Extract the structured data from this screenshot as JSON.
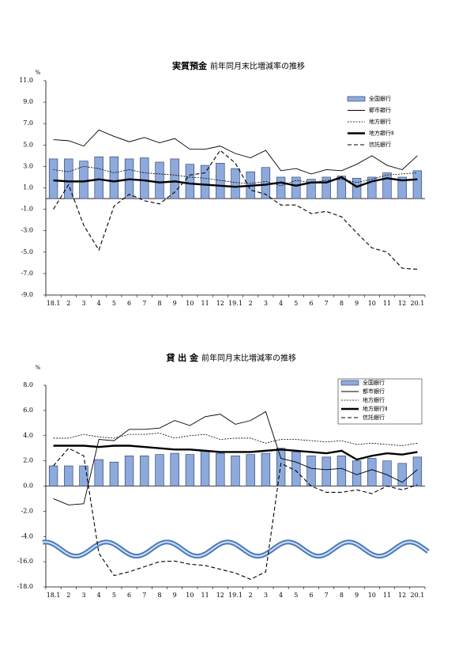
{
  "chart_data": [
    {
      "type": "bar-line",
      "title": "実質預金",
      "subtitle": "前年同月末比増減率の推移",
      "y_unit": "%",
      "categories": [
        "18.1",
        "2",
        "3",
        "4",
        "5",
        "6",
        "7",
        "8",
        "9",
        "10",
        "11",
        "12",
        "19.1",
        "2",
        "3",
        "4",
        "5",
        "6",
        "7",
        "8",
        "9",
        "10",
        "11",
        "12",
        "20.1"
      ],
      "ylim": [
        -9,
        11
      ],
      "yticks": [
        {
          "value": 11,
          "label": "11.0"
        },
        {
          "value": 9,
          "label": "9.0"
        },
        {
          "value": 7,
          "label": "7.0"
        },
        {
          "value": 5,
          "label": "5.0"
        },
        {
          "value": 3,
          "label": "3.0"
        },
        {
          "value": 1,
          "label": "1.0"
        },
        {
          "value": -1,
          "label": "-1.0"
        },
        {
          "value": -3,
          "label": "-3.0"
        },
        {
          "value": -5,
          "label": "-5.0"
        },
        {
          "value": -7,
          "label": "-7.0"
        },
        {
          "value": -9,
          "label": "-9.0"
        }
      ],
      "legend": "upper right",
      "legend_frame": false,
      "series": [
        {
          "name": "全国銀行",
          "kind": "bar",
          "color": "#8ea9db",
          "values": [
            3.7,
            3.7,
            3.5,
            3.9,
            3.9,
            3.7,
            3.8,
            3.4,
            3.7,
            3.2,
            3.1,
            3.3,
            2.8,
            2.5,
            2.9,
            2.0,
            2.0,
            1.8,
            2.0,
            2.1,
            1.9,
            2.0,
            2.4,
            2.0,
            2.6
          ]
        },
        {
          "name": "都市銀行",
          "kind": "line",
          "style": "solid",
          "color": "#000000",
          "values": [
            5.5,
            5.4,
            4.9,
            6.4,
            5.8,
            5.3,
            5.7,
            5.2,
            5.6,
            4.6,
            4.6,
            4.9,
            4.2,
            3.8,
            4.5,
            2.6,
            2.8,
            2.3,
            2.7,
            2.6,
            3.2,
            4.0,
            3.1,
            2.7,
            4.0
          ]
        },
        {
          "name": "地方銀行",
          "kind": "line",
          "style": "short-dash",
          "color": "#000000",
          "values": [
            2.7,
            2.5,
            3.0,
            2.8,
            2.4,
            2.7,
            2.4,
            2.3,
            2.2,
            2.0,
            1.9,
            1.7,
            1.5,
            1.4,
            1.6,
            1.2,
            1.7,
            1.5,
            1.7,
            1.8,
            1.5,
            1.8,
            2.2,
            2.3,
            2.4
          ]
        },
        {
          "name": "地方銀行Ⅱ",
          "kind": "line",
          "style": "thick",
          "color": "#000000",
          "values": [
            1.7,
            1.6,
            1.6,
            1.8,
            1.6,
            1.8,
            1.7,
            1.5,
            1.6,
            1.4,
            1.3,
            1.2,
            1.1,
            1.2,
            1.3,
            1.5,
            1.2,
            1.5,
            1.5,
            2.0,
            1.1,
            1.6,
            1.9,
            1.7,
            1.8
          ]
        },
        {
          "name": "信託銀行",
          "kind": "line",
          "style": "long-dash",
          "color": "#000000",
          "values": [
            -1.0,
            1.3,
            -2.5,
            -4.8,
            -0.7,
            0.4,
            -0.2,
            -0.5,
            0.6,
            2.2,
            2.4,
            4.5,
            3.3,
            0.8,
            0.4,
            -0.6,
            -0.6,
            -1.4,
            -1.2,
            -1.7,
            -3.2,
            -4.6,
            -5.0,
            -6.5,
            -6.6
          ]
        }
      ]
    },
    {
      "type": "bar-line",
      "title": "貸 出 金",
      "subtitle": "前年同月末比増減率の推移",
      "y_unit": "%",
      "categories": [
        "18.1",
        "2",
        "3",
        "4",
        "5",
        "6",
        "7",
        "8",
        "9",
        "10",
        "11",
        "12",
        "19.1",
        "2",
        "3",
        "4",
        "5",
        "6",
        "7",
        "8",
        "9",
        "10",
        "11",
        "12",
        "20.1"
      ],
      "ylim": [
        -18,
        8
      ],
      "ybreak": [
        -4,
        -16
      ],
      "yticks": [
        {
          "value": 8,
          "label": "8.0"
        },
        {
          "value": 6,
          "label": "6.0"
        },
        {
          "value": 4,
          "label": "4.0"
        },
        {
          "value": 2,
          "label": "2.0"
        },
        {
          "value": 0,
          "label": "0.0"
        },
        {
          "value": -2,
          "label": "-2.0"
        },
        {
          "value": -4,
          "label": "-4.0"
        },
        {
          "value": -16,
          "label": "-16.0"
        },
        {
          "value": -18,
          "label": "-18.0"
        }
      ],
      "legend": "upper right",
      "legend_frame": true,
      "series": [
        {
          "name": "全国銀行",
          "kind": "bar",
          "color": "#8ea9db",
          "values": [
            1.6,
            1.6,
            1.6,
            2.1,
            1.9,
            2.4,
            2.4,
            2.5,
            2.6,
            2.5,
            2.8,
            2.6,
            2.4,
            2.5,
            2.6,
            3.0,
            2.7,
            2.4,
            2.3,
            2.4,
            2.0,
            2.2,
            2.0,
            1.8,
            2.3
          ]
        },
        {
          "name": "都市銀行",
          "kind": "line",
          "style": "solid",
          "color": "#000000",
          "values": [
            -1.0,
            -1.5,
            -1.4,
            3.7,
            3.6,
            4.5,
            4.5,
            4.6,
            5.2,
            4.8,
            5.5,
            5.7,
            4.9,
            5.2,
            5.9,
            2.2,
            1.9,
            1.4,
            1.3,
            1.4,
            0.9,
            1.3,
            0.9,
            0.3,
            1.3
          ]
        },
        {
          "name": "地方銀行",
          "kind": "line",
          "style": "short-dash",
          "color": "#000000",
          "values": [
            3.8,
            3.8,
            4.1,
            3.9,
            3.8,
            4.1,
            4.1,
            4.2,
            3.8,
            4.0,
            4.1,
            3.7,
            3.8,
            3.8,
            3.4,
            3.7,
            3.7,
            3.6,
            3.5,
            3.6,
            3.3,
            3.4,
            3.3,
            3.2,
            3.4
          ]
        },
        {
          "name": "地方銀行Ⅱ",
          "kind": "line",
          "style": "thick",
          "color": "#000000",
          "values": [
            3.2,
            3.2,
            3.2,
            3.1,
            3.2,
            3.2,
            3.1,
            3.0,
            2.9,
            2.9,
            2.8,
            2.7,
            2.7,
            2.7,
            2.8,
            2.9,
            2.8,
            2.7,
            2.6,
            2.8,
            2.1,
            2.4,
            2.6,
            2.5,
            2.7
          ]
        },
        {
          "name": "信託銀行",
          "kind": "line",
          "style": "long-dash",
          "color": "#000000",
          "values": [
            1.6,
            3.0,
            2.4,
            -12.0,
            -17.1,
            -16.8,
            -16.4,
            -16.0,
            -15.7,
            -16.2,
            -16.3,
            -16.6,
            -16.9,
            -17.4,
            -16.8,
            1.8,
            1.2,
            0.0,
            -0.5,
            -0.5,
            -0.3,
            -0.6,
            0.0,
            -0.3,
            0.1
          ]
        }
      ]
    }
  ]
}
